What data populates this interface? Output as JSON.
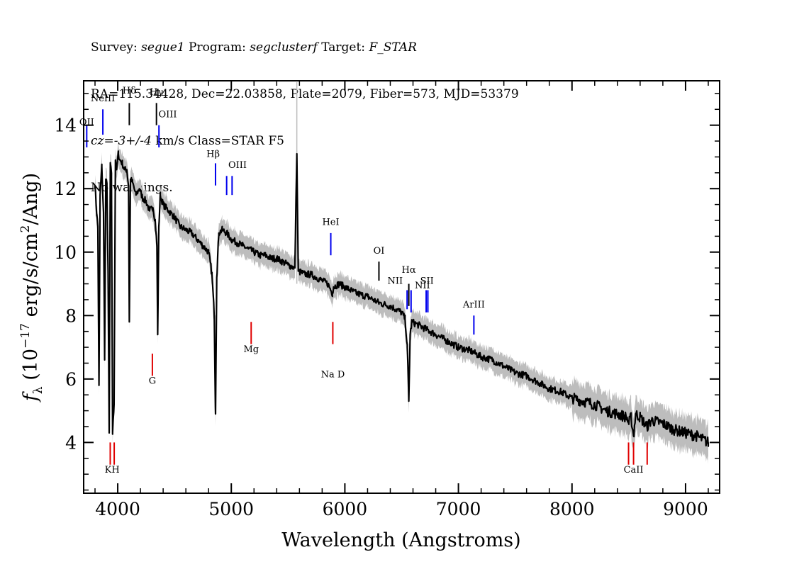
{
  "header": {
    "line1_survey_label": "Survey: ",
    "line1_survey_value": "segue1",
    "line1_program_label": " Program: ",
    "line1_program_value": "segclusterf",
    "line1_target_label": " Target: ",
    "line1_target_value": "F_STAR",
    "line2": "RA=115.34428, Dec=22.03858, Plate=2079, Fiber=573, MJD=53379",
    "line3_cz": "cz=-3+/-4",
    "line3_rest": " km/s Class=STAR F5",
    "line4": "No warnings."
  },
  "chart_data": {
    "type": "line",
    "title": "",
    "xlabel": "Wavelength (Angstroms)",
    "ylabel": "f_λ (10^-17 erg/s/cm^2/Ang)",
    "ylabel_prefix": "f",
    "ylabel_sub": "λ",
    "ylabel_mid": " (10",
    "ylabel_exp1": "−17",
    "ylabel_mid2": " erg/s/cm",
    "ylabel_exp2": "2",
    "ylabel_end": "/Ang)",
    "xlim": [
      3700,
      9300
    ],
    "ylim": [
      2.4,
      15.4
    ],
    "x_ticks": [
      4000,
      5000,
      6000,
      7000,
      8000,
      9000
    ],
    "x_tick_labels": [
      "4000",
      "5000",
      "6000",
      "7000",
      "8000",
      "9000"
    ],
    "y_ticks": [
      4,
      6,
      8,
      10,
      12,
      14
    ],
    "y_tick_labels": [
      "4",
      "6",
      "8",
      "10",
      "12",
      "14"
    ],
    "grid": false,
    "series": [
      {
        "role": "spectrum",
        "color": "#000000",
        "x": [
          3800,
          3815,
          3825,
          3835,
          3845,
          3860,
          3875,
          3885,
          3895,
          3905,
          3915,
          3925,
          3935,
          3945,
          3955,
          3968,
          3980,
          3990,
          4005,
          4020,
          4040,
          4060,
          4080,
          4095,
          4102,
          4112,
          4130,
          4160,
          4190,
          4220,
          4250,
          4280,
          4310,
          4330,
          4345,
          4352,
          4362,
          4375,
          4400,
          4450,
          4500,
          4550,
          4600,
          4650,
          4700,
          4750,
          4800,
          4830,
          4850,
          4861,
          4872,
          4890,
          4920,
          4960,
          5000,
          5050,
          5100,
          5150,
          5200,
          5250,
          5300,
          5350,
          5400,
          5450,
          5500,
          5560,
          5577,
          5590,
          5650,
          5700,
          5750,
          5800,
          5850,
          5890,
          5900,
          5950,
          6000,
          6100,
          6200,
          6300,
          6400,
          6450,
          6500,
          6530,
          6550,
          6563,
          6575,
          6590,
          6650,
          6700,
          6750,
          6800,
          6900,
          7000,
          7100,
          7200,
          7300,
          7400,
          7500,
          7600,
          7700,
          7800,
          7900,
          8000,
          8100,
          8200,
          8300,
          8400,
          8480,
          8500,
          8520,
          8542,
          8560,
          8600,
          8660,
          8700,
          8800,
          8900,
          9000,
          9100,
          9200
        ],
        "y": [
          12.1,
          11.2,
          10.8,
          5.8,
          11.8,
          12.7,
          11.2,
          6.7,
          12.3,
          12.1,
          9.4,
          4.3,
          12.8,
          12.4,
          4.3,
          5.2,
          12.9,
          12.6,
          13.1,
          12.9,
          12.8,
          12.6,
          12.6,
          12.1,
          7.8,
          12.3,
          12.2,
          11.8,
          12.0,
          11.7,
          11.6,
          11.3,
          11.4,
          11.0,
          10.2,
          7.4,
          10.8,
          11.8,
          11.5,
          11.3,
          11.1,
          10.8,
          10.7,
          10.6,
          10.4,
          10.2,
          10.0,
          9.3,
          8.0,
          4.9,
          9.2,
          10.6,
          10.7,
          10.6,
          10.4,
          10.3,
          10.2,
          10.1,
          10.0,
          9.9,
          9.9,
          9.8,
          9.8,
          9.7,
          9.6,
          9.5,
          13.1,
          9.4,
          9.3,
          9.3,
          9.2,
          9.1,
          9.0,
          8.7,
          8.9,
          9.0,
          8.9,
          8.7,
          8.6,
          8.4,
          8.3,
          8.2,
          8.1,
          7.9,
          7.0,
          5.3,
          7.4,
          7.8,
          7.7,
          7.6,
          7.5,
          7.4,
          7.2,
          7.0,
          6.9,
          6.7,
          6.6,
          6.4,
          6.2,
          6.1,
          5.9,
          5.7,
          5.6,
          5.4,
          5.3,
          5.2,
          5.0,
          4.9,
          4.8,
          4.6,
          4.8,
          4.2,
          4.9,
          4.8,
          4.5,
          4.7,
          4.6,
          4.4,
          4.3,
          4.2,
          4.0
        ]
      }
    ],
    "emission_lines_blue": [
      {
        "label": "OII",
        "x": 3727,
        "y_top": 14.0,
        "y_bot": 13.3
      },
      {
        "label": "NeIII",
        "x": 3869,
        "y_top": 14.5,
        "y_bot": 13.7
      },
      {
        "label": "OIII",
        "x": 4363,
        "y_top": 14.0,
        "y_bot": 13.3
      },
      {
        "label": "Hβ",
        "x": 4861,
        "y_top": 12.8,
        "y_bot": 12.1
      },
      {
        "label": "OIII",
        "x": 4959,
        "y_top": 12.4,
        "y_bot": 11.8
      },
      {
        "label": "OIII",
        "x": 5007,
        "y_top": 12.4,
        "y_bot": 11.8
      },
      {
        "label": "HeI",
        "x": 5876,
        "y_top": 10.6,
        "y_bot": 9.9
      },
      {
        "label": "NII",
        "x": 6548,
        "y_top": 8.8,
        "y_bot": 8.2
      },
      {
        "label": "NII",
        "x": 6583,
        "y_top": 8.8,
        "y_bot": 8.1
      },
      {
        "label": "SII",
        "x": 6716,
        "y_top": 8.8,
        "y_bot": 8.1
      },
      {
        "label": "SII",
        "x": 6731,
        "y_top": 8.8,
        "y_bot": 8.1
      },
      {
        "label": "ArIII",
        "x": 7136,
        "y_top": 8.0,
        "y_bot": 7.4
      }
    ],
    "balmer_lines_black": [
      {
        "label": "Hδ",
        "x": 4102,
        "y_top": 14.7,
        "y_bot": 14.0
      },
      {
        "label": "Hγ",
        "x": 4341,
        "y_top": 14.7,
        "y_bot": 14.0
      },
      {
        "label": "OI",
        "x": 6300,
        "y_top": 9.7,
        "y_bot": 9.1
      },
      {
        "label": "Hα",
        "x": 6563,
        "y_top": 9.0,
        "y_bot": 8.3
      }
    ],
    "absorption_lines_red": [
      {
        "label": "K",
        "x": 3934,
        "y_top": 4.0,
        "y_bot": 3.3
      },
      {
        "label": "H",
        "x": 3969,
        "y_top": 4.0,
        "y_bot": 3.3
      },
      {
        "label": "G",
        "x": 4305,
        "y_top": 6.8,
        "y_bot": 6.1
      },
      {
        "label": "Mg",
        "x": 5175,
        "y_top": 7.8,
        "y_bot": 7.1
      },
      {
        "label": "Na D",
        "x": 5894,
        "y_top": 7.8,
        "y_bot": 7.1
      },
      {
        "label": "CaII",
        "x": 8498,
        "y_top": 4.0,
        "y_bot": 3.3
      },
      {
        "label": "CaII",
        "x": 8542,
        "y_top": 4.0,
        "y_bot": 3.3
      },
      {
        "label": "CaII",
        "x": 8662,
        "y_top": 4.0,
        "y_bot": 3.3
      }
    ],
    "line_labels": [
      {
        "text": "OII",
        "x": 3727,
        "y": 14.0,
        "anchor": "middle"
      },
      {
        "text": "NeIII",
        "x": 3869,
        "y": 14.75,
        "anchor": "middle"
      },
      {
        "text": "Hδ",
        "x": 4102,
        "y": 15.0,
        "anchor": "middle"
      },
      {
        "text": "Hγ",
        "x": 4341,
        "y": 14.95,
        "anchor": "middle"
      },
      {
        "text": "OIII",
        "x": 4440,
        "y": 14.25,
        "anchor": "middle"
      },
      {
        "text": "Hβ",
        "x": 4840,
        "y": 13.0,
        "anchor": "middle"
      },
      {
        "text": "OIII",
        "x": 5055,
        "y": 12.65,
        "anchor": "middle"
      },
      {
        "text": "HeI",
        "x": 5876,
        "y": 10.85,
        "anchor": "middle"
      },
      {
        "text": "OI",
        "x": 6300,
        "y": 9.95,
        "anchor": "middle"
      },
      {
        "text": "Hα",
        "x": 6563,
        "y": 9.35,
        "anchor": "middle"
      },
      {
        "text": "NII",
        "x": 6443,
        "y": 9.0,
        "anchor": "middle"
      },
      {
        "text": "NII",
        "x": 6683,
        "y": 8.85,
        "anchor": "middle"
      },
      {
        "text": "SII",
        "x": 6723,
        "y": 9.0,
        "anchor": "middle"
      },
      {
        "text": "ArIII",
        "x": 7136,
        "y": 8.25,
        "anchor": "middle"
      },
      {
        "text": "Mg",
        "x": 5175,
        "y": 6.85,
        "anchor": "middle"
      },
      {
        "text": "Na  D",
        "x": 5894,
        "y": 6.05,
        "anchor": "middle"
      },
      {
        "text": "G",
        "x": 4305,
        "y": 5.85,
        "anchor": "middle"
      },
      {
        "text": "KH",
        "x": 3951,
        "y": 3.05,
        "anchor": "middle"
      },
      {
        "text": "CaII",
        "x": 8542,
        "y": 3.05,
        "anchor": "middle"
      }
    ],
    "colors": {
      "spectrum": "#000000",
      "error_band": "#bdbdbd",
      "emission": "#0000ee",
      "absorption": "#e00000",
      "balmer": "#000000"
    }
  }
}
